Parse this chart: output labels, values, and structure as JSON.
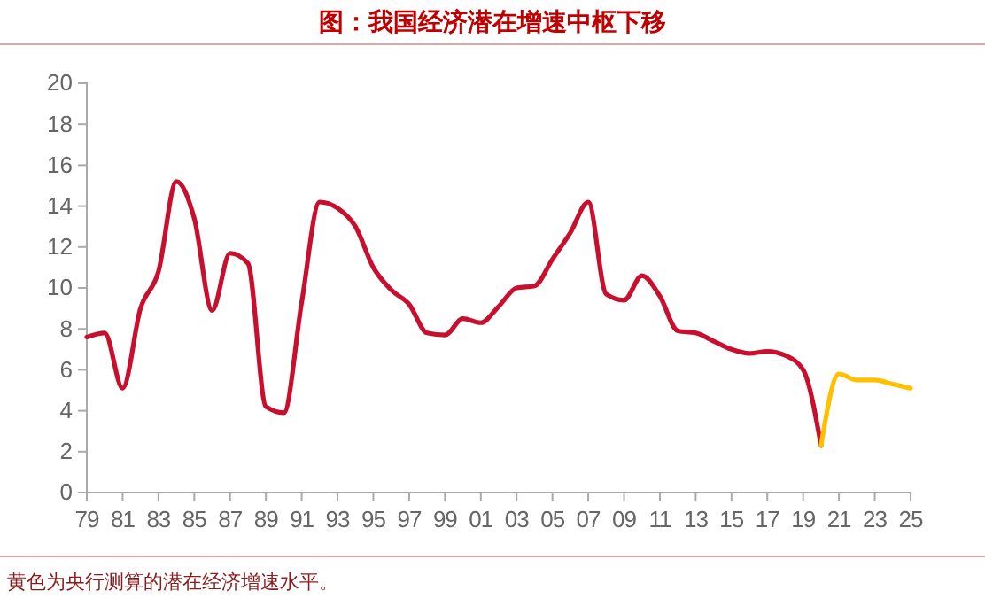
{
  "chart_data": {
    "type": "line",
    "title": "图：我国经济潜在增速中枢下移",
    "annotations": [
      "黄色为央行测算的潜在经济增速水平。"
    ],
    "series": [
      {
        "color": "#c8102e",
        "x": [
          1979,
          1980,
          1981,
          1982,
          1983,
          1984,
          1985,
          1986,
          1987,
          1988,
          1989,
          1990,
          1991,
          1992,
          1993,
          1994,
          1995,
          1996,
          1997,
          1998,
          1999,
          2000,
          2001,
          2002,
          2003,
          2004,
          2005,
          2006,
          2007,
          2008,
          2009,
          2010,
          2011,
          2012,
          2013,
          2014,
          2015,
          2016,
          2017,
          2018,
          2019,
          2020
        ],
        "values": [
          7.6,
          7.8,
          5.1,
          9.0,
          10.8,
          15.2,
          13.4,
          8.9,
          11.7,
          11.2,
          4.2,
          3.9,
          9.3,
          14.2,
          13.9,
          13.0,
          11.0,
          9.9,
          9.2,
          7.8,
          7.7,
          8.5,
          8.3,
          9.1,
          10.0,
          10.1,
          11.4,
          12.7,
          14.2,
          9.7,
          9.4,
          10.6,
          9.6,
          7.9,
          7.8,
          7.4,
          7.0,
          6.8,
          6.9,
          6.7,
          6.0,
          2.3
        ]
      },
      {
        "color": "#ffc000",
        "x": [
          2020,
          2021,
          2022,
          2023,
          2024,
          2025
        ],
        "values": [
          2.3,
          5.8,
          5.5,
          5.5,
          5.3,
          5.1
        ]
      }
    ],
    "xlim": [
      1979,
      2025
    ],
    "xticks": [
      {
        "value": 1979,
        "label": "79"
      },
      {
        "value": 1981,
        "label": "81"
      },
      {
        "value": 1983,
        "label": "83"
      },
      {
        "value": 1985,
        "label": "85"
      },
      {
        "value": 1987,
        "label": "87"
      },
      {
        "value": 1989,
        "label": "89"
      },
      {
        "value": 1991,
        "label": "91"
      },
      {
        "value": 1993,
        "label": "93"
      },
      {
        "value": 1995,
        "label": "95"
      },
      {
        "value": 1997,
        "label": "97"
      },
      {
        "value": 1999,
        "label": "99"
      },
      {
        "value": 2001,
        "label": "01"
      },
      {
        "value": 2003,
        "label": "03"
      },
      {
        "value": 2005,
        "label": "05"
      },
      {
        "value": 2007,
        "label": "07"
      },
      {
        "value": 2009,
        "label": "09"
      },
      {
        "value": 2011,
        "label": "11"
      },
      {
        "value": 2013,
        "label": "13"
      },
      {
        "value": 2015,
        "label": "15"
      },
      {
        "value": 2017,
        "label": "17"
      },
      {
        "value": 2019,
        "label": "19"
      },
      {
        "value": 2021,
        "label": "21"
      },
      {
        "value": 2023,
        "label": "23"
      },
      {
        "value": 2025,
        "label": "25"
      }
    ],
    "ylim": [
      0,
      20
    ],
    "yticks": [
      0,
      2,
      4,
      6,
      8,
      10,
      12,
      14,
      16,
      18,
      20
    ],
    "grid": false,
    "marker": "none",
    "line_style": "solid"
  }
}
